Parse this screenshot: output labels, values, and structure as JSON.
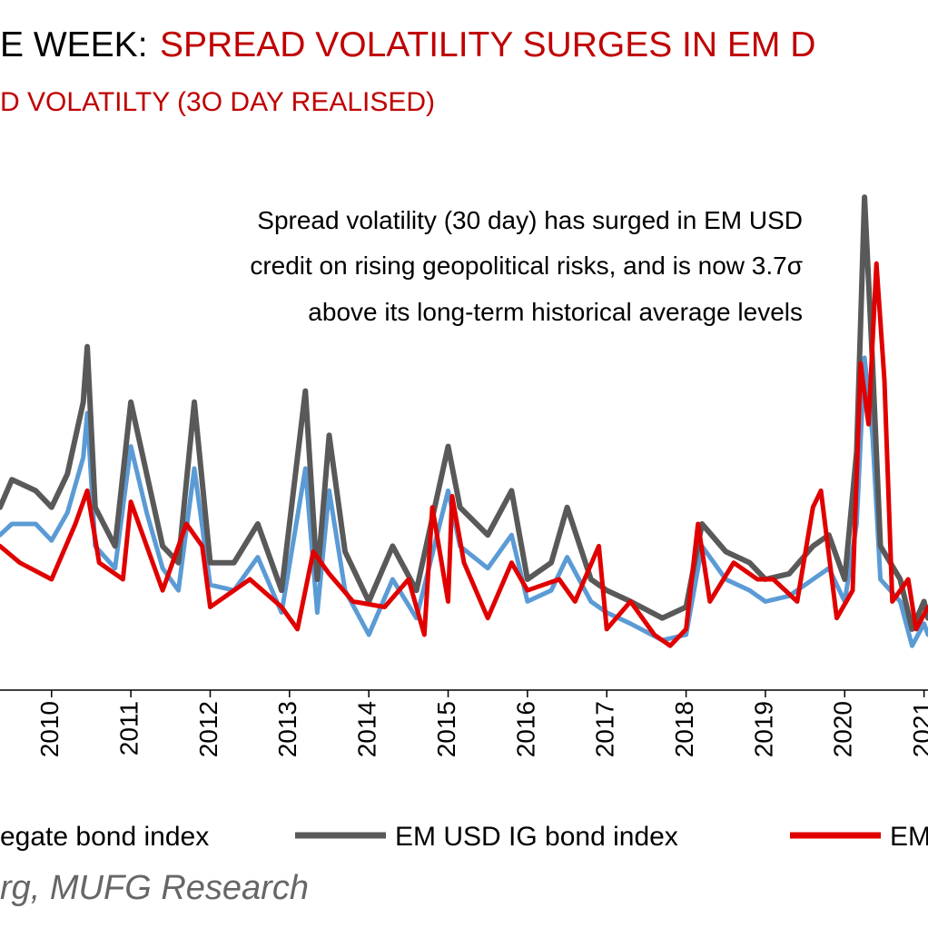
{
  "chart_data": {
    "type": "line",
    "title_parts": [
      "E WEEK:",
      "SPREAD VOLATILITY SURGES IN EM D"
    ],
    "subtitle": "D VOLATILTY (3O DAY REALISED)",
    "annotation": [
      "Spread volatility (30 day) has surged in EM USD",
      "credit on rising geopolitical risks, and is now 3.7σ",
      "above its long-term historical average levels"
    ],
    "source": "rg, MUFG Research",
    "xlim": [
      2009.35,
      2021.05
    ],
    "xticks": [
      2010,
      2011,
      2012,
      2013,
      2014,
      2015,
      2016,
      2017,
      2018,
      2019,
      2020,
      2021
    ],
    "ylim": [
      0,
      100
    ],
    "series": [
      {
        "name": "egate bond index",
        "color": "#5b9bd5",
        "x": [
          2009.35,
          2009.5,
          2009.8,
          2010.0,
          2010.2,
          2010.4,
          2010.45,
          2010.55,
          2010.8,
          2011.0,
          2011.2,
          2011.4,
          2011.6,
          2011.8,
          2012.0,
          2012.3,
          2012.6,
          2012.9,
          2013.2,
          2013.35,
          2013.5,
          2013.7,
          2014.0,
          2014.3,
          2014.6,
          2015.0,
          2015.15,
          2015.5,
          2015.8,
          2016.0,
          2016.3,
          2016.5,
          2016.8,
          2017.0,
          2017.3,
          2017.7,
          2018.0,
          2018.2,
          2018.5,
          2018.8,
          2019.0,
          2019.3,
          2019.6,
          2019.8,
          2020.0,
          2020.15,
          2020.25,
          2020.35,
          2020.45,
          2020.7,
          2020.85,
          2021.0,
          2021.05
        ],
        "values": [
          28,
          30,
          30,
          27,
          32,
          42,
          50,
          26,
          22,
          44,
          32,
          22,
          18,
          40,
          19,
          18,
          24,
          14,
          40,
          14,
          36,
          18,
          10,
          20,
          13,
          36,
          26,
          22,
          28,
          16,
          18,
          24,
          16,
          14,
          12,
          9,
          10,
          26,
          20,
          18,
          16,
          17,
          20,
          22,
          16,
          30,
          60,
          46,
          20,
          16,
          8,
          12,
          10
        ]
      },
      {
        "name": "EM USD IG bond index",
        "color": "#595959",
        "x": [
          2009.35,
          2009.5,
          2009.8,
          2010.0,
          2010.2,
          2010.4,
          2010.45,
          2010.55,
          2010.8,
          2011.0,
          2011.2,
          2011.4,
          2011.6,
          2011.8,
          2012.0,
          2012.3,
          2012.6,
          2012.9,
          2013.2,
          2013.35,
          2013.5,
          2013.7,
          2014.0,
          2014.3,
          2014.6,
          2015.0,
          2015.15,
          2015.5,
          2015.8,
          2016.0,
          2016.3,
          2016.5,
          2016.8,
          2017.0,
          2017.3,
          2017.7,
          2018.0,
          2018.2,
          2018.5,
          2018.8,
          2019.0,
          2019.3,
          2019.6,
          2019.8,
          2020.0,
          2020.15,
          2020.25,
          2020.35,
          2020.45,
          2020.7,
          2020.85,
          2021.0,
          2021.05
        ],
        "values": [
          33,
          38,
          36,
          33,
          39,
          52,
          62,
          33,
          26,
          52,
          39,
          26,
          23,
          52,
          23,
          23,
          30,
          18,
          54,
          20,
          46,
          25,
          16,
          26,
          18,
          44,
          33,
          28,
          36,
          20,
          23,
          33,
          20,
          18,
          16,
          13,
          15,
          30,
          25,
          23,
          20,
          21,
          26,
          28,
          20,
          43,
          89,
          59,
          26,
          20,
          11,
          16,
          13
        ]
      },
      {
        "name": "EM",
        "color": "#e00000",
        "x": [
          2009.35,
          2009.6,
          2010.0,
          2010.3,
          2010.45,
          2010.6,
          2010.9,
          2011.0,
          2011.2,
          2011.4,
          2011.7,
          2011.9,
          2012.0,
          2012.5,
          2012.9,
          2013.1,
          2013.3,
          2013.5,
          2013.8,
          2014.2,
          2014.5,
          2014.7,
          2014.8,
          2015.0,
          2015.05,
          2015.2,
          2015.5,
          2015.8,
          2016.0,
          2016.4,
          2016.6,
          2016.9,
          2017.0,
          2017.3,
          2017.6,
          2017.8,
          2018.0,
          2018.15,
          2018.3,
          2018.6,
          2018.9,
          2019.1,
          2019.4,
          2019.6,
          2019.7,
          2019.9,
          2020.1,
          2020.2,
          2020.3,
          2020.4,
          2020.5,
          2020.6,
          2020.8,
          2020.9,
          2021.05
        ],
        "values": [
          26,
          23,
          20,
          30,
          36,
          23,
          20,
          34,
          26,
          18,
          30,
          26,
          15,
          20,
          15,
          11,
          25,
          21,
          16,
          15,
          20,
          10,
          33,
          16,
          35,
          23,
          13,
          23,
          18,
          20,
          16,
          26,
          11,
          16,
          10,
          8,
          11,
          30,
          16,
          23,
          20,
          20,
          16,
          33,
          36,
          13,
          18,
          59,
          48,
          77,
          56,
          16,
          20,
          11,
          15
        ]
      }
    ]
  }
}
